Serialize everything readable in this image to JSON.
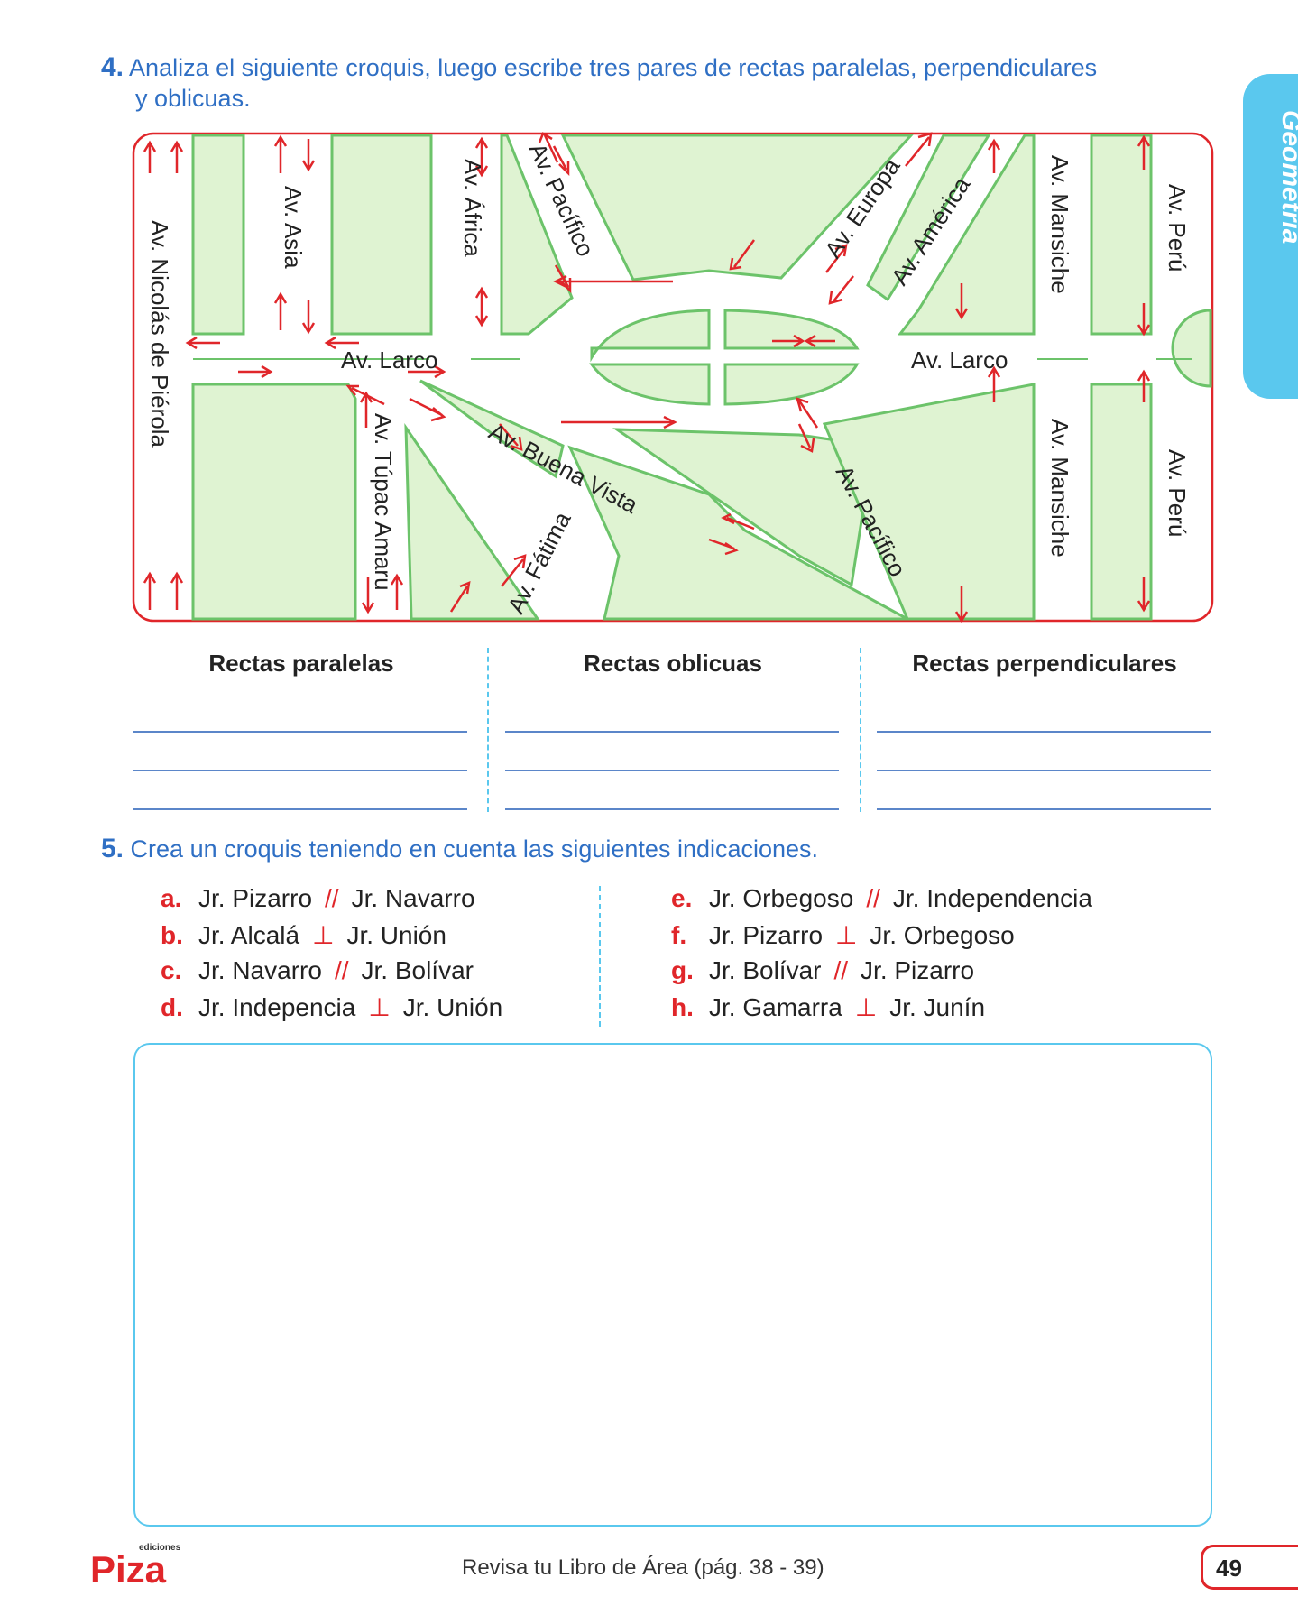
{
  "side_tab": {
    "label": "Geometría",
    "color": "#5ac8ee"
  },
  "q4": {
    "number": "4.",
    "text_line1": "Analiza el siguiente croquis, luego escribe tres pares de rectas paralelas, perpendiculares",
    "text_line2": "y oblicuas."
  },
  "map": {
    "streets": {
      "nicolas": "Av. Nicolás de Piérola",
      "asia": "Av. Asia",
      "africa": "Av. África",
      "pacifico_top": "Av. Pacífico",
      "europa": "Av. Europa",
      "america": "Av. América",
      "mansiche_top": "Av. Mansiche",
      "peru_top": "Av. Perú",
      "larco_left": "Av. Larco",
      "larco_right": "Av. Larco",
      "tupac": "Av. Túpac Amaru",
      "buena_vista": "Av. Buena Vista",
      "fatima": "Av. Fátima",
      "pacifico_bottom": "Av. Pacífico",
      "mansiche_bottom": "Av. Mansiche",
      "peru_bottom": "Av. Perú"
    },
    "colors": {
      "border": "#e0262a",
      "block_fill": "#dff3d2",
      "block_stroke": "#6cc36a",
      "arrow": "#e0262a"
    }
  },
  "table": {
    "col1": "Rectas paralelas",
    "col2": "Rectas oblicuas",
    "col3": "Rectas perpendiculares"
  },
  "q5": {
    "number": "5.",
    "text": "Crea un croquis teniendo en cuenta las siguientes indicaciones.",
    "items": [
      {
        "letter": "a.",
        "a": "Jr. Pizarro",
        "sym": "//",
        "b": "Jr. Navarro"
      },
      {
        "letter": "b.",
        "a": "Jr. Alcalá",
        "sym": "⊥",
        "b": "Jr. Unión"
      },
      {
        "letter": "c.",
        "a": "Jr. Navarro",
        "sym": "//",
        "b": "Jr. Bolívar"
      },
      {
        "letter": "d.",
        "a": "Jr. Indepencia",
        "sym": "⊥",
        "b": "Jr. Unión"
      },
      {
        "letter": "e.",
        "a": "Jr. Orbegoso",
        "sym": "//",
        "b": "Jr. Independencia"
      },
      {
        "letter": "f.",
        "a": "Jr. Pizarro",
        "sym": "⊥",
        "b": "Jr. Orbegoso"
      },
      {
        "letter": "g.",
        "a": "Jr. Bolívar",
        "sym": "//",
        "b": "Jr. Pizarro"
      },
      {
        "letter": "h.",
        "a": "Jr. Gamarra",
        "sym": "⊥",
        "b": "Jr. Junín"
      }
    ]
  },
  "footer": {
    "logo_text": "Piza",
    "logo_small": "ediciones",
    "center_text": "Revisa tu Libro de Área (pág. 38 - 39)",
    "page_number": "49"
  }
}
